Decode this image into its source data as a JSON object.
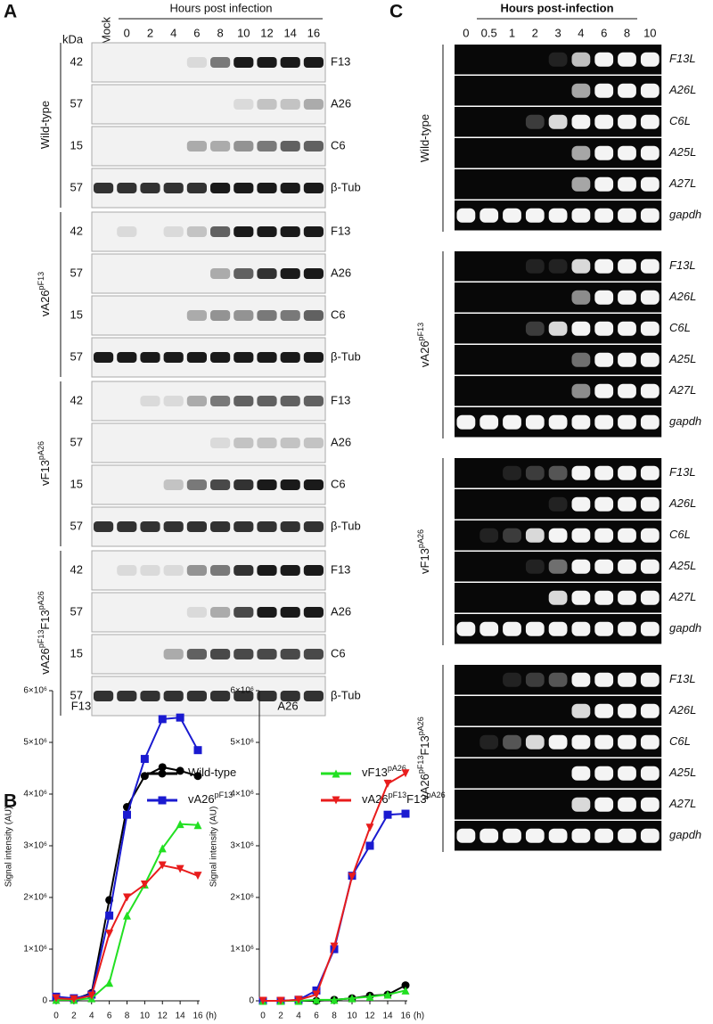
{
  "panel_a": {
    "letter": "A",
    "unit": "kDa",
    "mock": "Mock",
    "header": "Hours post infection",
    "hours": [
      "0",
      "2",
      "4",
      "6",
      "8",
      "10",
      "12",
      "14",
      "16"
    ],
    "groups": [
      {
        "name": [
          {
            "t": "Wild-type"
          }
        ],
        "rows": [
          {
            "kda": "42",
            "protein": "F13"
          },
          {
            "kda": "57",
            "protein": "A26"
          },
          {
            "kda": "15",
            "protein": "C6"
          },
          {
            "kda": "57",
            "protein": "β-Tub"
          }
        ]
      },
      {
        "name": [
          {
            "t": "vA26",
            "sup": "pF13"
          }
        ],
        "rows": [
          {
            "kda": "42",
            "protein": "F13"
          },
          {
            "kda": "57",
            "protein": "A26"
          },
          {
            "kda": "15",
            "protein": "C6"
          },
          {
            "kda": "57",
            "protein": "β-Tub"
          }
        ]
      },
      {
        "name": [
          {
            "t": "vF13",
            "sup": "pA26"
          }
        ],
        "rows": [
          {
            "kda": "42",
            "protein": "F13"
          },
          {
            "kda": "57",
            "protein": "A26"
          },
          {
            "kda": "15",
            "protein": "C6"
          },
          {
            "kda": "57",
            "protein": "β-Tub"
          }
        ]
      },
      {
        "name": [
          {
            "t": "vA26",
            "sup": "pF13"
          },
          {
            "t": "F13",
            "sup": "pA26"
          }
        ],
        "rows": [
          {
            "kda": "42",
            "protein": "F13"
          },
          {
            "kda": "57",
            "protein": "A26"
          },
          {
            "kda": "15",
            "protein": "C6"
          },
          {
            "kda": "57",
            "protein": "β-Tub"
          }
        ]
      }
    ]
  },
  "panel_b": {
    "letter": "B",
    "charts": [
      {
        "type": "line",
        "title": "F13",
        "y_label": "Signal intensity (AU)",
        "x_label": "(h)",
        "x": [
          0,
          2,
          4,
          6,
          8,
          10,
          12,
          14,
          16
        ],
        "xlim": [
          0,
          16
        ],
        "xticks": [
          0,
          2,
          4,
          6,
          8,
          10,
          12,
          14,
          16
        ],
        "ylim": [
          0,
          6000000
        ],
        "yticks": [
          0,
          {
            "value": 1000000,
            "label": "1×10⁶"
          },
          {
            "value": 2000000,
            "label": "2×10⁶"
          },
          {
            "value": 3000000,
            "label": "3×10⁶"
          },
          {
            "value": 4000000,
            "label": "4×10⁶"
          },
          {
            "value": 5000000,
            "label": "5×10⁶"
          },
          {
            "value": 6000000,
            "label": "6×10⁶"
          }
        ],
        "series": [
          {
            "name": [
              {
                "t": "Wild-type"
              }
            ],
            "color": "#000000",
            "marker": "circle",
            "values": [
              50000,
              30000,
              150000,
              1950000,
              3750000,
              4350000,
              4520000,
              4450000,
              4350000
            ]
          },
          {
            "name": [
              {
                "t": "vA26",
                "sup": "pF13"
              }
            ],
            "color": "#1a1ad0",
            "marker": "square",
            "values": [
              80000,
              50000,
              120000,
              1650000,
              3600000,
              4680000,
              5450000,
              5480000,
              4850000
            ]
          },
          {
            "name": [
              {
                "t": "vF13",
                "sup": "pA26"
              }
            ],
            "color": "#22e022",
            "marker": "triangle-up",
            "values": [
              20000,
              20000,
              50000,
              350000,
              1650000,
              2250000,
              2950000,
              3420000,
              3400000
            ]
          },
          {
            "name": [
              {
                "t": "vA26",
                "sup": "pF13"
              },
              {
                "t": "F13",
                "sup": "pA26"
              }
            ],
            "color": "#e81c1c",
            "marker": "triangle-down",
            "values": [
              50000,
              30000,
              100000,
              1300000,
              2000000,
              2250000,
              2620000,
              2550000,
              2420000
            ]
          }
        ]
      },
      {
        "type": "line",
        "title": "A26",
        "y_label": "Signal intensity (AU)",
        "x_label": "(h)",
        "x": [
          0,
          2,
          4,
          6,
          8,
          10,
          12,
          14,
          16
        ],
        "xlim": [
          0,
          16
        ],
        "xticks": [
          0,
          2,
          4,
          6,
          8,
          10,
          12,
          14,
          16
        ],
        "ylim": [
          0,
          6000000
        ],
        "yticks": [
          0,
          {
            "value": 1000000,
            "label": "1×10⁶"
          },
          {
            "value": 2000000,
            "label": "2×10⁶"
          },
          {
            "value": 3000000,
            "label": "3×10⁶"
          },
          {
            "value": 4000000,
            "label": "4×10⁶"
          },
          {
            "value": 5000000,
            "label": "5×10⁶"
          },
          {
            "value": 6000000,
            "label": "6×10⁶"
          }
        ],
        "series": [
          {
            "name": [
              {
                "t": "Wild-type"
              }
            ],
            "color": "#000000",
            "marker": "circle",
            "values": [
              0,
              0,
              0,
              0,
              20000,
              50000,
              100000,
              120000,
              300000
            ]
          },
          {
            "name": [
              {
                "t": "vA26",
                "sup": "pF13"
              }
            ],
            "color": "#1a1ad0",
            "marker": "square",
            "values": [
              0,
              0,
              20000,
              200000,
              1000000,
              2420000,
              3000000,
              3600000,
              3620000
            ]
          },
          {
            "name": [
              {
                "t": "vF13",
                "sup": "pA26"
              }
            ],
            "color": "#22e022",
            "marker": "triangle-up",
            "values": [
              0,
              0,
              0,
              20000,
              20000,
              50000,
              80000,
              120000,
              200000
            ]
          },
          {
            "name": [
              {
                "t": "vA26",
                "sup": "pF13"
              },
              {
                "t": "F13",
                "sup": "pA26"
              }
            ],
            "color": "#e81c1c",
            "marker": "triangle-down",
            "values": [
              0,
              0,
              20000,
              120000,
              1050000,
              2400000,
              3350000,
              4200000,
              4400000
            ]
          }
        ]
      }
    ]
  },
  "panel_c": {
    "letter": "C",
    "header": "Hours post-infection",
    "hours": [
      "0",
      "0.5",
      "1",
      "2",
      "3",
      "4",
      "6",
      "8",
      "10"
    ],
    "groups": [
      {
        "name": [
          {
            "t": "Wild-type"
          }
        ],
        "genes": [
          "F13L",
          "A26L",
          "C6L",
          "A25L",
          "A27L",
          "gapdh"
        ]
      },
      {
        "name": [
          {
            "t": "vA26",
            "sup": "pF13"
          }
        ],
        "genes": [
          "F13L",
          "A26L",
          "C6L",
          "A25L",
          "A27L",
          "gapdh"
        ]
      },
      {
        "name": [
          {
            "t": "vF13",
            "sup": "pA26"
          }
        ],
        "genes": [
          "F13L",
          "A26L",
          "C6L",
          "A25L",
          "A27L",
          "gapdh"
        ]
      },
      {
        "name": [
          {
            "t": "vA26",
            "sup": "pF13"
          },
          {
            "t": "F13",
            "sup": "pA26"
          }
        ],
        "genes": [
          "F13L",
          "A26L",
          "C6L",
          "A25L",
          "A27L",
          "gapdh"
        ]
      }
    ]
  }
}
